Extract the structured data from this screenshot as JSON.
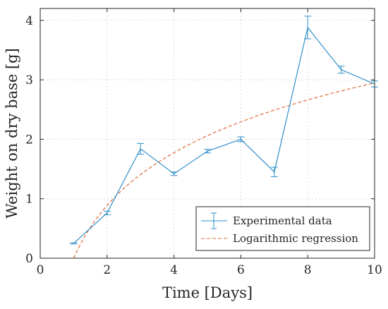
{
  "chart_data": {
    "type": "line",
    "title": "",
    "xlabel": "Time [Days]",
    "ylabel": "Weight on dry base [g]",
    "xlim": [
      0,
      10
    ],
    "ylim": [
      0,
      4.2
    ],
    "xticks": [
      0,
      2,
      4,
      6,
      8,
      10
    ],
    "yticks": [
      0,
      1,
      2,
      3,
      4
    ],
    "grid": true,
    "legend": "bottom-right",
    "series": [
      {
        "name": "Experimental data",
        "style": "line-with-errorbars",
        "color": "#2f8fc9",
        "x": [
          1,
          2,
          3,
          4,
          5,
          6,
          7,
          8,
          9,
          10
        ],
        "y": [
          0.25,
          0.76,
          1.84,
          1.42,
          1.8,
          2.0,
          1.45,
          3.88,
          3.17,
          2.93
        ],
        "error": [
          0.01,
          0.03,
          0.09,
          0.03,
          0.03,
          0.04,
          0.08,
          0.19,
          0.06,
          0.05
        ]
      },
      {
        "name": "Logarithmic regression",
        "style": "dashed",
        "color": "#e06b3a",
        "model": "y = a + b*ln(x)",
        "a": 0.0,
        "b": 1.28,
        "x_range": [
          1,
          10
        ]
      }
    ]
  }
}
